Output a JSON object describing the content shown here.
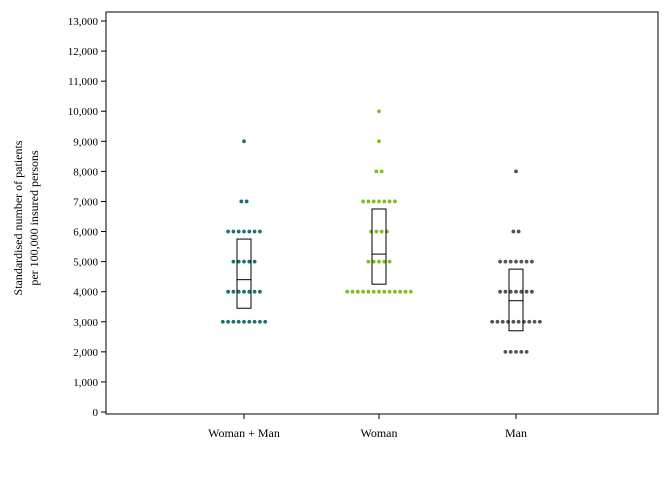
{
  "chart_data": {
    "type": "scatter",
    "title": "",
    "xlabel": "",
    "ylabel_lines": [
      "Standardised number of patients",
      "per 100,000 insured persons"
    ],
    "categories": [
      "Woman + Man",
      "Woman",
      "Man"
    ],
    "ylim": [
      0,
      13000
    ],
    "yticks": [
      0,
      1000,
      2000,
      3000,
      4000,
      5000,
      6000,
      7000,
      8000,
      9000,
      10000,
      11000,
      12000,
      13000
    ],
    "ytick_labels": [
      "0",
      "1,000",
      "2,000",
      "3,000",
      "4,000",
      "5,000",
      "6,000",
      "7,000",
      "8,000",
      "9,000",
      "10,000",
      "11,000",
      "12,000",
      "13,000"
    ],
    "grid": false,
    "series": [
      {
        "category": "Woman + Man",
        "color": "#1f6f73",
        "points": [
          {
            "y": 3000,
            "n": 9
          },
          {
            "y": 4000,
            "n": 7
          },
          {
            "y": 5000,
            "n": 5
          },
          {
            "y": 6000,
            "n": 7
          },
          {
            "y": 7000,
            "n": 2
          },
          {
            "y": 9000,
            "n": 1
          }
        ],
        "box": {
          "q1": 3450,
          "median": 4400,
          "q3": 5750
        }
      },
      {
        "category": "Woman",
        "color": "#7dc01e",
        "points": [
          {
            "y": 4000,
            "n": 13
          },
          {
            "y": 5000,
            "n": 5
          },
          {
            "y": 6000,
            "n": 4
          },
          {
            "y": 7000,
            "n": 7
          },
          {
            "y": 8000,
            "n": 2
          },
          {
            "y": 9000,
            "n": 1
          },
          {
            "y": 10000,
            "n": 1
          }
        ],
        "box": {
          "q1": 4250,
          "median": 5250,
          "q3": 6750
        }
      },
      {
        "category": "Man",
        "color": "#555555",
        "points": [
          {
            "y": 2000,
            "n": 5
          },
          {
            "y": 3000,
            "n": 10
          },
          {
            "y": 4000,
            "n": 7
          },
          {
            "y": 5000,
            "n": 7
          },
          {
            "y": 6000,
            "n": 2
          },
          {
            "y": 8000,
            "n": 1
          }
        ],
        "box": {
          "q1": 2700,
          "median": 3700,
          "q3": 4750
        }
      }
    ]
  }
}
